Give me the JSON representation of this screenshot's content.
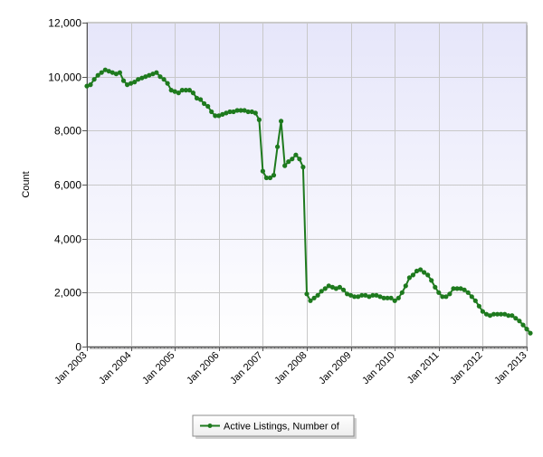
{
  "chart_data": {
    "type": "line",
    "title": "",
    "xlabel": "",
    "ylabel": "Count",
    "ylim": [
      0,
      12000
    ],
    "y_ticks": [
      0,
      2000,
      4000,
      6000,
      8000,
      10000,
      12000
    ],
    "y_tick_labels": [
      "0",
      "2,000",
      "4,000",
      "6,000",
      "8,000",
      "10,000",
      "12,000"
    ],
    "x_range": [
      "2003-01",
      "2013-01"
    ],
    "x_ticks": [
      "2003-01",
      "2004-01",
      "2005-01",
      "2006-01",
      "2007-01",
      "2008-01",
      "2009-01",
      "2010-01",
      "2011-01",
      "2012-01",
      "2013-01"
    ],
    "x_tick_labels": [
      "Jan 2003",
      "Jan 2004",
      "Jan 2005",
      "Jan 2006",
      "Jan 2007",
      "Jan 2008",
      "Jan 2009",
      "Jan 2010",
      "Jan 2011",
      "Jan 2012",
      "Jan 2013"
    ],
    "grid": true,
    "legend_position": "bottom-center",
    "background_gradient": [
      "#e6e6fa",
      "#ffffff"
    ],
    "series": [
      {
        "name": "Active Listings, Number of",
        "color": "#1e7a1e",
        "points": [
          [
            "2003-01",
            9650
          ],
          [
            "2003-02",
            9700
          ],
          [
            "2003-03",
            9900
          ],
          [
            "2003-04",
            10050
          ],
          [
            "2003-05",
            10150
          ],
          [
            "2003-06",
            10250
          ],
          [
            "2003-07",
            10200
          ],
          [
            "2003-08",
            10150
          ],
          [
            "2003-09",
            10100
          ],
          [
            "2003-10",
            10150
          ],
          [
            "2003-11",
            9850
          ],
          [
            "2003-12",
            9700
          ],
          [
            "2004-01",
            9750
          ],
          [
            "2004-02",
            9800
          ],
          [
            "2004-03",
            9900
          ],
          [
            "2004-04",
            9950
          ],
          [
            "2004-05",
            10000
          ],
          [
            "2004-06",
            10050
          ],
          [
            "2004-07",
            10100
          ],
          [
            "2004-08",
            10150
          ],
          [
            "2004-09",
            10000
          ],
          [
            "2004-10",
            9900
          ],
          [
            "2004-11",
            9750
          ],
          [
            "2004-12",
            9500
          ],
          [
            "2005-01",
            9450
          ],
          [
            "2005-02",
            9400
          ],
          [
            "2005-03",
            9500
          ],
          [
            "2005-04",
            9500
          ],
          [
            "2005-05",
            9500
          ],
          [
            "2005-06",
            9400
          ],
          [
            "2005-07",
            9200
          ],
          [
            "2005-08",
            9150
          ],
          [
            "2005-09",
            9000
          ],
          [
            "2005-10",
            8900
          ],
          [
            "2005-11",
            8700
          ],
          [
            "2005-12",
            8550
          ],
          [
            "2006-01",
            8550
          ],
          [
            "2006-02",
            8600
          ],
          [
            "2006-03",
            8650
          ],
          [
            "2006-04",
            8700
          ],
          [
            "2006-05",
            8700
          ],
          [
            "2006-06",
            8750
          ],
          [
            "2006-07",
            8750
          ],
          [
            "2006-08",
            8750
          ],
          [
            "2006-09",
            8700
          ],
          [
            "2006-10",
            8700
          ],
          [
            "2006-11",
            8650
          ],
          [
            "2006-12",
            8400
          ],
          [
            "2007-01",
            6500
          ],
          [
            "2007-02",
            6250
          ],
          [
            "2007-03",
            6250
          ],
          [
            "2007-04",
            6350
          ],
          [
            "2007-05",
            7400
          ],
          [
            "2007-06",
            8350
          ],
          [
            "2007-07",
            6700
          ],
          [
            "2007-08",
            6850
          ],
          [
            "2007-09",
            6950
          ],
          [
            "2007-10",
            7100
          ],
          [
            "2007-11",
            6950
          ],
          [
            "2007-12",
            6650
          ],
          [
            "2008-01",
            1950
          ],
          [
            "2008-02",
            1700
          ],
          [
            "2008-03",
            1800
          ],
          [
            "2008-04",
            1900
          ],
          [
            "2008-05",
            2050
          ],
          [
            "2008-06",
            2150
          ],
          [
            "2008-07",
            2250
          ],
          [
            "2008-08",
            2200
          ],
          [
            "2008-09",
            2150
          ],
          [
            "2008-10",
            2200
          ],
          [
            "2008-11",
            2100
          ],
          [
            "2008-12",
            1950
          ],
          [
            "2009-01",
            1900
          ],
          [
            "2009-02",
            1850
          ],
          [
            "2009-03",
            1850
          ],
          [
            "2009-04",
            1900
          ],
          [
            "2009-05",
            1900
          ],
          [
            "2009-06",
            1850
          ],
          [
            "2009-07",
            1900
          ],
          [
            "2009-08",
            1900
          ],
          [
            "2009-09",
            1850
          ],
          [
            "2009-10",
            1800
          ],
          [
            "2009-11",
            1800
          ],
          [
            "2009-12",
            1800
          ],
          [
            "2010-01",
            1700
          ],
          [
            "2010-02",
            1800
          ],
          [
            "2010-03",
            2000
          ],
          [
            "2010-04",
            2250
          ],
          [
            "2010-05",
            2550
          ],
          [
            "2010-06",
            2650
          ],
          [
            "2010-07",
            2800
          ],
          [
            "2010-08",
            2850
          ],
          [
            "2010-09",
            2750
          ],
          [
            "2010-10",
            2650
          ],
          [
            "2010-11",
            2450
          ],
          [
            "2010-12",
            2200
          ],
          [
            "2011-01",
            2000
          ],
          [
            "2011-02",
            1850
          ],
          [
            "2011-03",
            1850
          ],
          [
            "2011-04",
            1950
          ],
          [
            "2011-05",
            2150
          ],
          [
            "2011-06",
            2150
          ],
          [
            "2011-07",
            2150
          ],
          [
            "2011-08",
            2100
          ],
          [
            "2011-09",
            2000
          ],
          [
            "2011-10",
            1850
          ],
          [
            "2011-11",
            1700
          ],
          [
            "2011-12",
            1500
          ],
          [
            "2012-01",
            1300
          ],
          [
            "2012-02",
            1200
          ],
          [
            "2012-03",
            1150
          ],
          [
            "2012-04",
            1200
          ],
          [
            "2012-05",
            1200
          ],
          [
            "2012-06",
            1200
          ],
          [
            "2012-07",
            1200
          ],
          [
            "2012-08",
            1150
          ],
          [
            "2012-09",
            1150
          ],
          [
            "2012-10",
            1050
          ],
          [
            "2012-11",
            950
          ],
          [
            "2012-12",
            800
          ],
          [
            "2013-01",
            650
          ],
          [
            "2013-02",
            500
          ]
        ]
      }
    ]
  }
}
